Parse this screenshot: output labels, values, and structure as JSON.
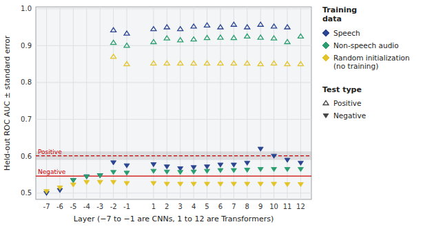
{
  "chart_data": {
    "type": "scatter",
    "xlabel": "Layer (−7 to −1 are CNNs, 1 to 12 are Transformers)",
    "ylabel": "Held-out ROC AUC ± standard error",
    "x": [
      -7,
      -6,
      -5,
      -4,
      -3,
      -2,
      -1,
      1,
      2,
      3,
      4,
      5,
      6,
      7,
      8,
      9,
      10,
      11,
      12
    ],
    "xlim": [
      -7.8,
      12.8
    ],
    "xticks": [
      -7,
      -6,
      -5,
      -4,
      -3,
      -2,
      -1,
      1,
      2,
      3,
      4,
      5,
      6,
      7,
      8,
      9,
      10,
      11,
      12
    ],
    "ylim": [
      0.483,
      1.005
    ],
    "yticks": [
      0.5,
      0.6,
      0.7,
      0.8,
      0.9,
      {
        "value": 1.0,
        "label": "1.0"
      }
    ],
    "grid": true,
    "legend": "right",
    "legend_titles": {
      "training": "Training\ndata",
      "test": "Test type"
    },
    "test_types": [
      {
        "name": "Positive",
        "marker": "triangle-up-open"
      },
      {
        "name": "Negative",
        "marker": "triangle-down"
      }
    ],
    "band": {
      "from": 0.59,
      "to": 0.613
    },
    "reference_lines": [
      {
        "value": 0.601,
        "label": "Positive",
        "color": "#CC0000",
        "line_style": "dashed"
      },
      {
        "value": 0.546,
        "label": "Negative",
        "color": "#CC0000",
        "line_style": "solid"
      }
    ],
    "series": [
      {
        "name": "Speech",
        "color": "#2B4590",
        "marker": "triangle-up-open",
        "values": [
          null,
          null,
          null,
          null,
          null,
          0.942,
          0.933,
          0.945,
          0.95,
          0.945,
          0.952,
          0.955,
          0.95,
          0.957,
          0.95,
          0.957,
          0.952,
          0.95,
          null
        ]
      },
      {
        "name": "Speech",
        "color": "#2B4590",
        "marker": "triangle-down",
        "values": [
          0.5,
          0.508,
          0.535,
          0.545,
          0.548,
          0.583,
          0.575,
          0.578,
          0.572,
          0.567,
          0.57,
          0.572,
          0.577,
          0.577,
          0.582,
          0.62,
          0.601,
          0.59,
          0.582
        ]
      },
      {
        "name": "Non-speech audio",
        "color": "#2A9D6F",
        "marker": "triangle-up-open",
        "values": [
          null,
          null,
          null,
          null,
          null,
          0.908,
          0.9,
          0.91,
          0.92,
          0.915,
          0.917,
          0.921,
          0.922,
          0.921,
          0.925,
          0.922,
          0.92,
          0.91,
          0.925
        ]
      },
      {
        "name": "Non-speech audio",
        "color": "#2A9D6F",
        "marker": "triangle-down",
        "values": [
          null,
          null,
          0.535,
          0.545,
          0.548,
          0.557,
          0.555,
          0.56,
          0.558,
          0.557,
          0.558,
          0.56,
          0.562,
          0.562,
          0.563,
          0.565,
          0.565,
          0.565,
          0.565
        ]
      },
      {
        "name": "Random initialization\n(no training)",
        "color": "#E3C428",
        "marker": "triangle-up-open",
        "values": [
          null,
          null,
          null,
          null,
          null,
          0.87,
          0.85,
          0.852,
          0.852,
          0.852,
          0.852,
          0.852,
          0.852,
          0.852,
          0.852,
          0.85,
          0.852,
          0.85,
          0.85
        ]
      },
      {
        "name": "Random initialization\n(no training)",
        "color": "#E3C428",
        "marker": "triangle-down",
        "values": [
          0.505,
          0.515,
          0.523,
          0.53,
          0.53,
          0.53,
          0.527,
          0.527,
          0.525,
          0.525,
          0.525,
          0.525,
          0.525,
          0.525,
          0.525,
          0.525,
          0.525,
          0.524,
          0.524
        ]
      }
    ]
  }
}
